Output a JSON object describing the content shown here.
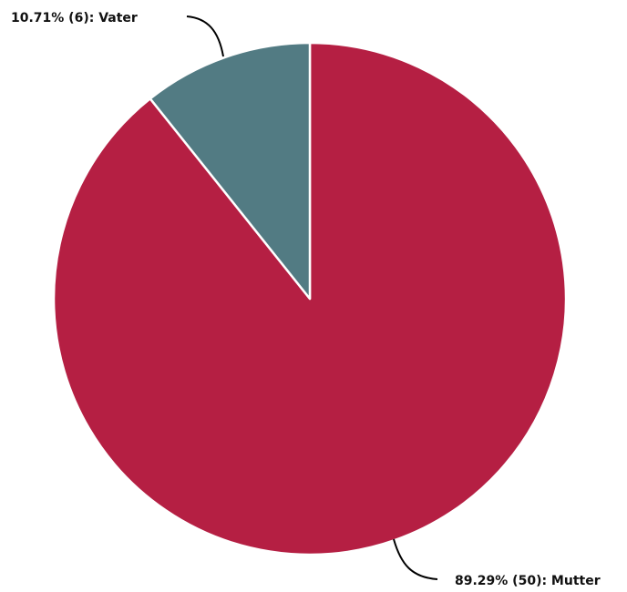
{
  "chart_data": {
    "type": "pie",
    "start_angle": "top",
    "direction": "clockwise",
    "slices": [
      {
        "name": "Mutter",
        "value": 50,
        "percent": 89.29,
        "label": "89.29% (50): Mutter",
        "color": "#b51f43"
      },
      {
        "name": "Vater",
        "value": 6,
        "percent": 10.71,
        "label": "10.71% (6): Vater",
        "color": "#527b83"
      }
    ]
  }
}
